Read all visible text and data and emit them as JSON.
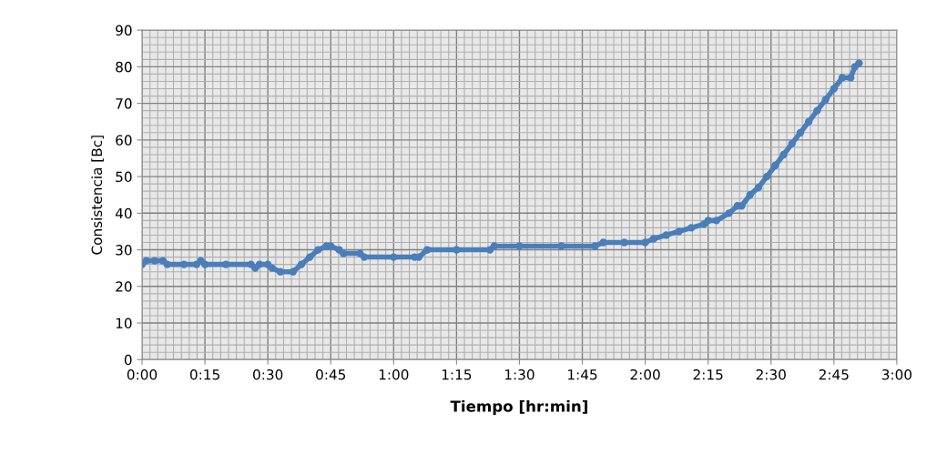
{
  "chart_data": {
    "type": "line",
    "xlabel": "Tiempo [hr:min]",
    "ylabel": "Consistencia [Bc]",
    "x": [
      0,
      0.0167,
      0.05,
      0.0833,
      0.1,
      0.1667,
      0.2167,
      0.2333,
      0.25,
      0.3333,
      0.4333,
      0.45,
      0.4667,
      0.5,
      0.5167,
      0.55,
      0.6,
      0.6333,
      0.6667,
      0.7,
      0.7333,
      0.75,
      0.7833,
      0.8,
      0.8667,
      0.8833,
      1.0,
      1.0833,
      1.1,
      1.1333,
      1.25,
      1.3833,
      1.4,
      1.5,
      1.6667,
      1.8,
      1.8333,
      1.9167,
      2.0,
      2.0333,
      2.0833,
      2.1333,
      2.1833,
      2.2333,
      2.25,
      2.2833,
      2.3333,
      2.3667,
      2.3833,
      2.4167,
      2.45,
      2.4833,
      2.5167,
      2.55,
      2.5833,
      2.6167,
      2.65,
      2.6833,
      2.7167,
      2.75,
      2.7833,
      2.8167,
      2.8333,
      2.85
    ],
    "series": [
      {
        "color": "#4a7ebb",
        "values": [
          26,
          27,
          27,
          27,
          26,
          26,
          26,
          27,
          26,
          26,
          26,
          25,
          26,
          26,
          25,
          24,
          24,
          26,
          28,
          30,
          31,
          31,
          30,
          29,
          29,
          28,
          28,
          28,
          28,
          30,
          30,
          30,
          31,
          31,
          31,
          31,
          32,
          32,
          32,
          33,
          34,
          35,
          36,
          37,
          38,
          38,
          40,
          42,
          42,
          45,
          47,
          50,
          53,
          56,
          59,
          62,
          65,
          68,
          71,
          74,
          77,
          77,
          80,
          81
        ]
      }
    ],
    "xlim": [
      0,
      3
    ],
    "xticks": [
      {
        "value": 0,
        "label": "0:00"
      },
      {
        "value": 0.25,
        "label": "0:15"
      },
      {
        "value": 0.5,
        "label": "0:30"
      },
      {
        "value": 0.75,
        "label": "0:45"
      },
      {
        "value": 1,
        "label": "1:00"
      },
      {
        "value": 1.25,
        "label": "1:15"
      },
      {
        "value": 1.5,
        "label": "1:30"
      },
      {
        "value": 1.75,
        "label": "1:45"
      },
      {
        "value": 2,
        "label": "2:00"
      },
      {
        "value": 2.25,
        "label": "2:15"
      },
      {
        "value": 2.5,
        "label": "2:30"
      },
      {
        "value": 2.75,
        "label": "2:45"
      },
      {
        "value": 3,
        "label": "3:00"
      }
    ],
    "ylim": [
      0,
      90
    ],
    "yticks": [
      0,
      10,
      20,
      30,
      40,
      50,
      60,
      70,
      80,
      90
    ],
    "grid": true,
    "marker": "circle",
    "line_style": "solid",
    "legend": false
  }
}
